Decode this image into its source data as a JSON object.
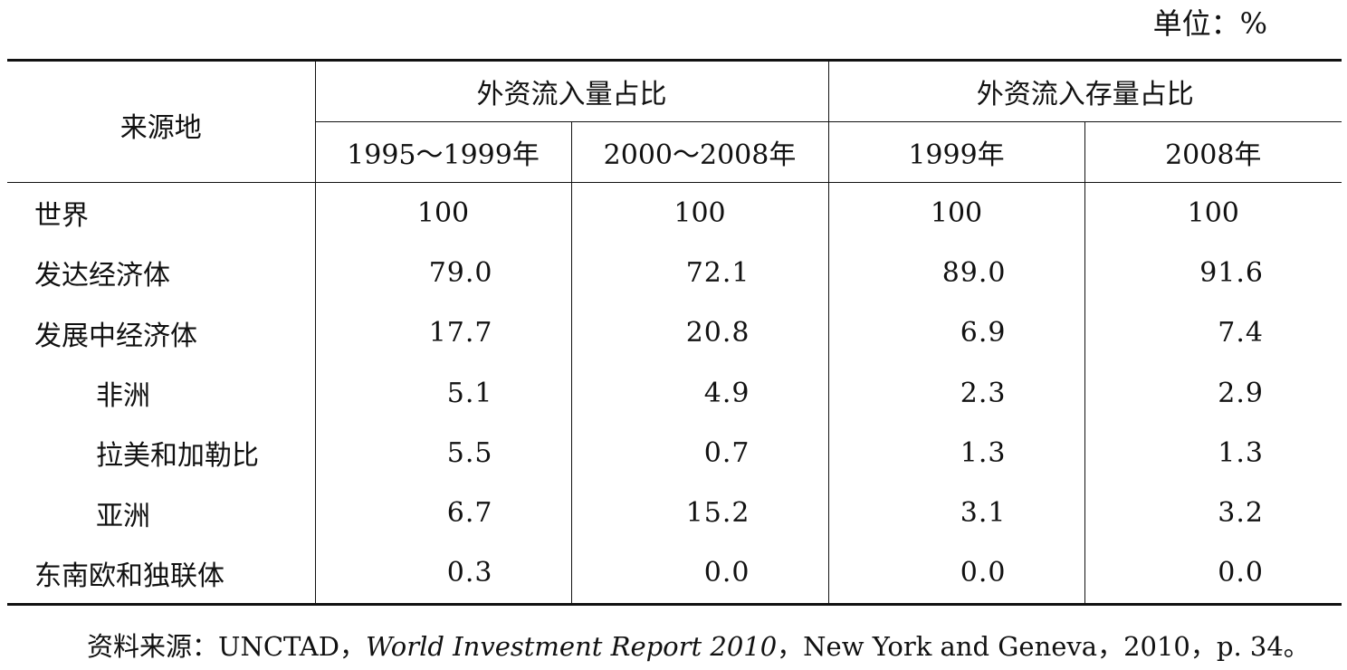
{
  "unit_label": "单位：%",
  "header": {
    "row_label": "来源地",
    "group_inflow": "外资流入量占比",
    "group_stock": "外资流入存量占比",
    "periods": [
      "1995～1999年",
      "2000～2008年",
      "1999年",
      "2008年"
    ]
  },
  "rows": [
    {
      "name": "世界",
      "values": [
        "100",
        "100",
        "100",
        "100"
      ]
    },
    {
      "name": "发达经济体",
      "values": [
        "79.0",
        "72.1",
        "89.0",
        "91.6"
      ]
    },
    {
      "name": "发展中经济体",
      "values": [
        "17.7",
        "20.8",
        "6.9",
        "7.4"
      ]
    },
    {
      "name": "非洲",
      "values": [
        "5.1",
        "4.9",
        "2.3",
        "2.9"
      ]
    },
    {
      "name": "拉美和加勒比",
      "values": [
        "5.5",
        "0.7",
        "1.3",
        "1.3"
      ]
    },
    {
      "name": "亚洲",
      "values": [
        "6.7",
        "15.2",
        "3.1",
        "3.2"
      ]
    },
    {
      "name": "东南欧和独联体",
      "values": [
        "0.3",
        "0.0",
        "0.0",
        "0.0"
      ]
    }
  ],
  "source": {
    "prefix": "资料来源：UNCTAD，",
    "title": "World Investment Report 2010",
    "suffix": "，New York and Geneva，2010，p. 34。"
  }
}
